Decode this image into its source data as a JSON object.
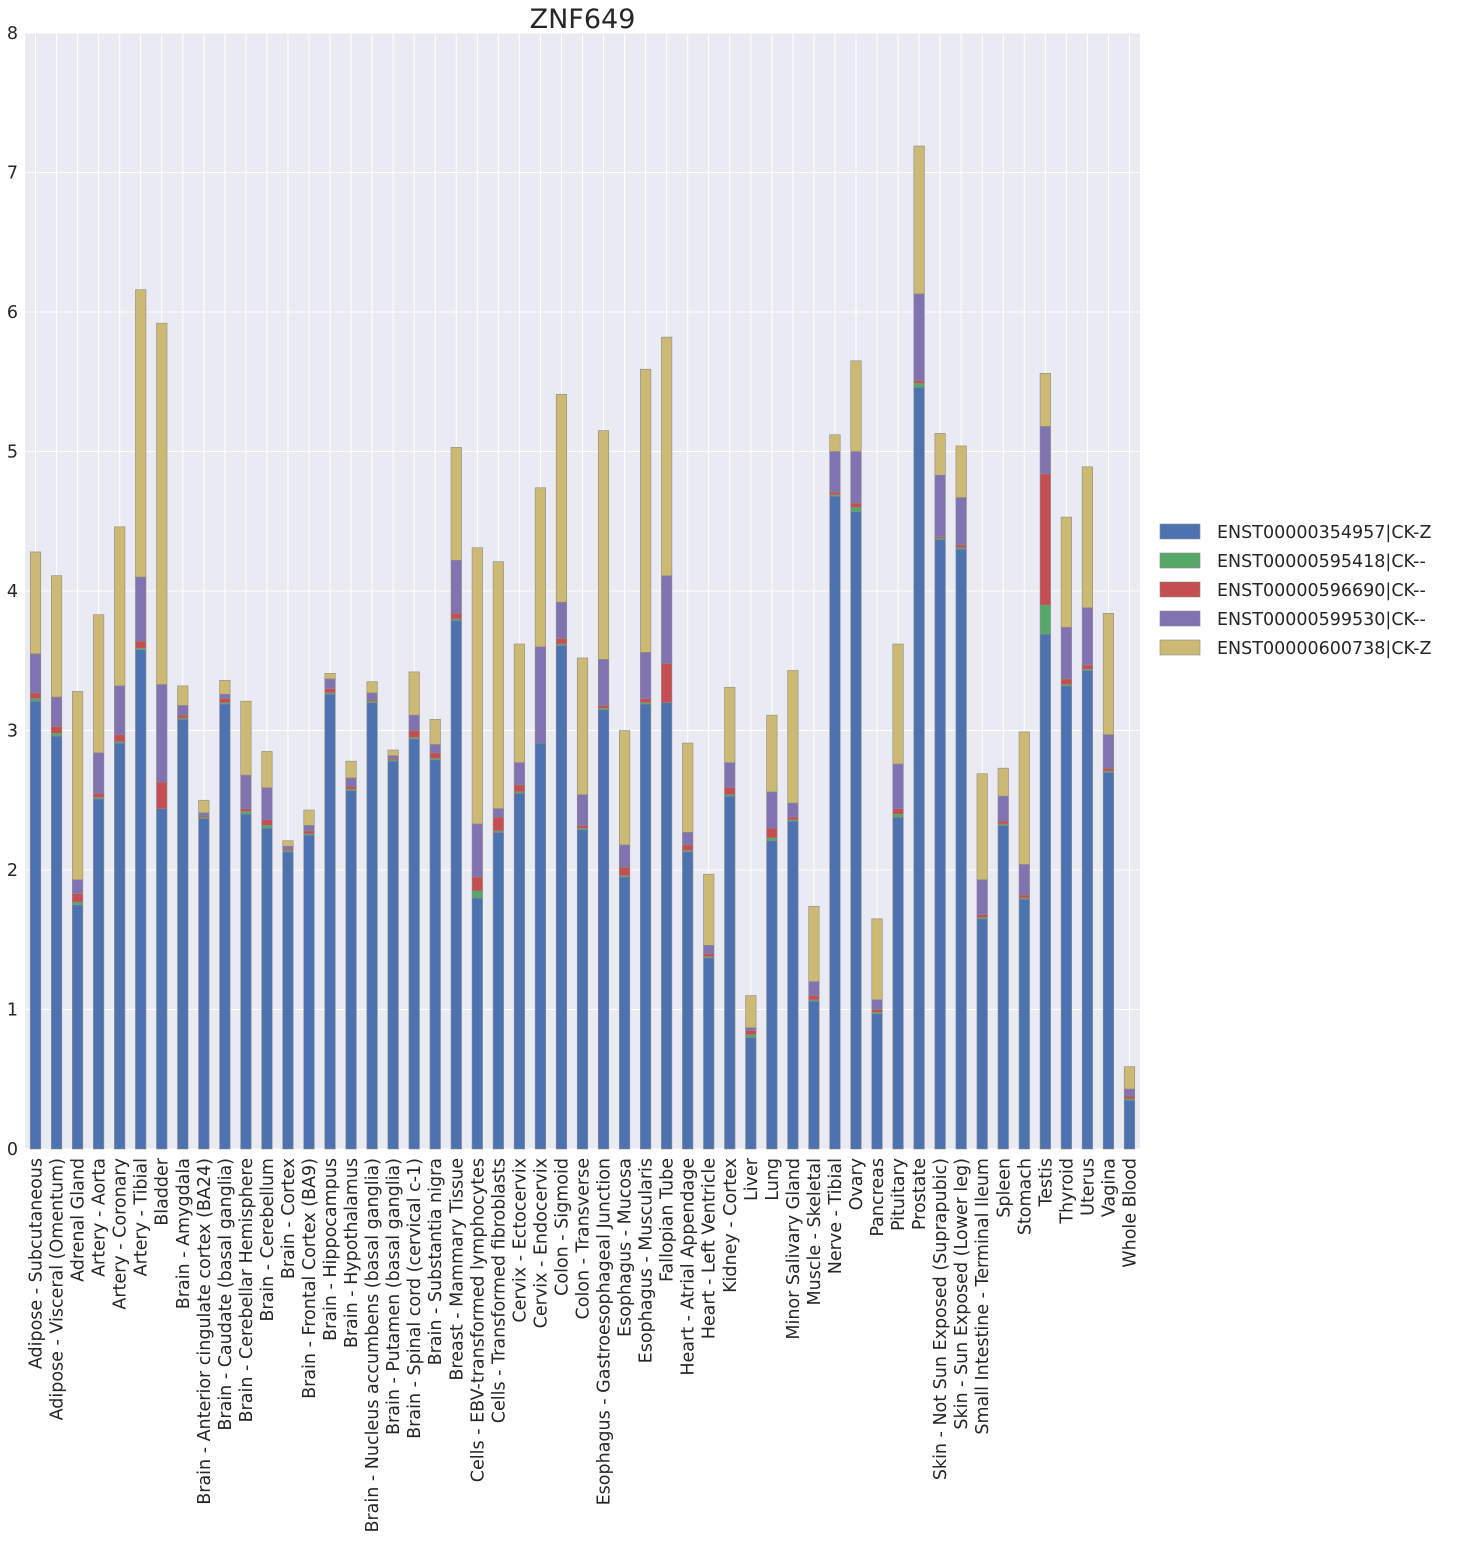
{
  "chart_data": {
    "type": "bar",
    "stacked": true,
    "title": "ZNF649",
    "xlabel": "",
    "ylabel": "",
    "ylim": [
      0,
      8
    ],
    "yticks": [
      "0",
      "1",
      "2",
      "3",
      "4",
      "5",
      "6",
      "7",
      "8"
    ],
    "grid": true,
    "legend_position": "right",
    "colors": [
      "#4c72b0",
      "#55a868",
      "#c44e52",
      "#8172b2",
      "#ccb974"
    ],
    "background": "#eaeaf2",
    "categories": [
      "Adipose - Subcutaneous",
      "Adipose - Visceral (Omentum)",
      "Adrenal Gland",
      "Artery - Aorta",
      "Artery - Coronary",
      "Artery - Tibial",
      "Bladder",
      "Brain - Amygdala",
      "Brain - Anterior cingulate cortex (BA24)",
      "Brain - Caudate (basal ganglia)",
      "Brain - Cerebellar Hemisphere",
      "Brain - Cerebellum",
      "Brain - Cortex",
      "Brain - Frontal Cortex (BA9)",
      "Brain - Hippocampus",
      "Brain - Hypothalamus",
      "Brain - Nucleus accumbens (basal ganglia)",
      "Brain - Putamen (basal ganglia)",
      "Brain - Spinal cord (cervical c-1)",
      "Brain - Substantia nigra",
      "Breast - Mammary Tissue",
      "Cells - EBV-transformed lymphocytes",
      "Cells - Transformed fibroblasts",
      "Cervix - Ectocervix",
      "Cervix - Endocervix",
      "Colon - Sigmoid",
      "Colon - Transverse",
      "Esophagus - Gastroesophageal Junction",
      "Esophagus - Mucosa",
      "Esophagus - Muscularis",
      "Fallopian Tube",
      "Heart - Atrial Appendage",
      "Heart - Left Ventricle",
      "Kidney - Cortex",
      "Liver",
      "Lung",
      "Minor Salivary Gland",
      "Muscle - Skeletal",
      "Nerve - Tibial",
      "Ovary",
      "Pancreas",
      "Pituitary",
      "Prostate",
      "Skin - Not Sun Exposed (Suprapubic)",
      "Skin - Sun Exposed (Lower leg)",
      "Small Intestine - Terminal Ileum",
      "Spleen",
      "Stomach",
      "Testis",
      "Thyroid",
      "Uterus",
      "Vagina",
      "Whole Blood"
    ],
    "series": [
      {
        "name": "ENST00000354957|CK-Z",
        "values": [
          3.21,
          2.96,
          1.75,
          2.51,
          2.91,
          3.58,
          2.44,
          3.08,
          2.37,
          3.19,
          2.4,
          2.3,
          2.13,
          2.25,
          3.26,
          2.57,
          3.2,
          2.78,
          2.94,
          2.79,
          3.79,
          1.8,
          2.27,
          2.55,
          2.91,
          3.61,
          2.29,
          3.15,
          1.95,
          3.19,
          3.2,
          2.13,
          1.37,
          2.53,
          0.8,
          2.21,
          2.35,
          1.06,
          4.68,
          4.57,
          0.97,
          2.38,
          5.46,
          4.37,
          4.3,
          1.65,
          2.32,
          1.79,
          3.69,
          3.32,
          3.43,
          2.7,
          0.35
        ]
      },
      {
        "name": "ENST00000595418|CK--",
        "values": [
          0.02,
          0.02,
          0.02,
          0.01,
          0.01,
          0.01,
          0.0,
          0.01,
          0.01,
          0.01,
          0.02,
          0.02,
          0.01,
          0.01,
          0.01,
          0.01,
          0.01,
          0.01,
          0.01,
          0.01,
          0.01,
          0.05,
          0.01,
          0.01,
          0.0,
          0.01,
          0.01,
          0.01,
          0.01,
          0.01,
          0.0,
          0.01,
          0.01,
          0.01,
          0.02,
          0.02,
          0.01,
          0.01,
          0.01,
          0.03,
          0.01,
          0.02,
          0.03,
          0.01,
          0.01,
          0.01,
          0.01,
          0.01,
          0.21,
          0.01,
          0.01,
          0.01,
          0.01
        ]
      },
      {
        "name": "ENST00000596690|CK--",
        "values": [
          0.04,
          0.05,
          0.06,
          0.03,
          0.05,
          0.05,
          0.19,
          0.02,
          0.01,
          0.03,
          0.02,
          0.04,
          0.01,
          0.02,
          0.03,
          0.02,
          0.01,
          0.01,
          0.05,
          0.04,
          0.04,
          0.1,
          0.1,
          0.05,
          0.0,
          0.04,
          0.02,
          0.02,
          0.06,
          0.03,
          0.28,
          0.04,
          0.02,
          0.05,
          0.03,
          0.07,
          0.02,
          0.03,
          0.02,
          0.03,
          0.02,
          0.04,
          0.02,
          0.01,
          0.02,
          0.02,
          0.02,
          0.02,
          0.94,
          0.04,
          0.03,
          0.02,
          0.02
        ]
      },
      {
        "name": "ENST00000599530|CK--",
        "values": [
          0.28,
          0.21,
          0.1,
          0.29,
          0.35,
          0.46,
          0.7,
          0.07,
          0.02,
          0.03,
          0.24,
          0.23,
          0.02,
          0.04,
          0.07,
          0.06,
          0.05,
          0.02,
          0.11,
          0.06,
          0.38,
          0.38,
          0.06,
          0.16,
          0.69,
          0.26,
          0.22,
          0.33,
          0.16,
          0.33,
          0.63,
          0.09,
          0.06,
          0.18,
          0.02,
          0.26,
          0.1,
          0.1,
          0.29,
          0.37,
          0.07,
          0.32,
          0.62,
          0.44,
          0.34,
          0.25,
          0.18,
          0.22,
          0.34,
          0.37,
          0.41,
          0.24,
          0.05
        ]
      },
      {
        "name": "ENST00000600738|CK-Z",
        "values": [
          0.73,
          0.87,
          1.35,
          0.99,
          1.14,
          2.06,
          2.59,
          0.14,
          0.09,
          0.1,
          0.53,
          0.26,
          0.04,
          0.11,
          0.04,
          0.12,
          0.08,
          0.04,
          0.31,
          0.18,
          0.81,
          1.98,
          1.77,
          0.85,
          1.14,
          1.49,
          0.98,
          1.64,
          0.82,
          2.03,
          1.71,
          0.64,
          0.51,
          0.54,
          0.23,
          0.55,
          0.95,
          0.54,
          0.12,
          0.65,
          0.58,
          0.86,
          1.06,
          0.3,
          0.37,
          0.76,
          0.2,
          0.95,
          0.38,
          0.79,
          1.01,
          0.87,
          0.16
        ]
      }
    ]
  }
}
